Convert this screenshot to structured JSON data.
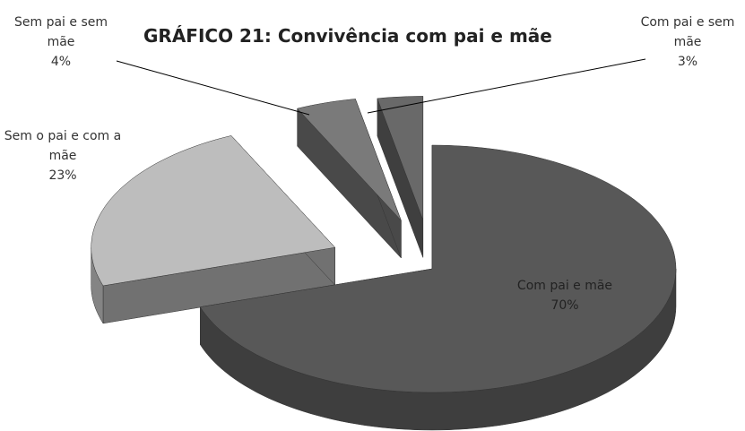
{
  "chart_data": {
    "type": "pie3d",
    "title": "GRÁFICO 21: Convivência com pai e mãe",
    "categories": [
      "Com pai e mãe",
      "Sem o pai e com a mãe",
      "Sem pai e sem mãe",
      "Com pai e sem mãe"
    ],
    "values": [
      70,
      23,
      4,
      3
    ],
    "value_labels": [
      "70%",
      "23%",
      "4%",
      "3%"
    ],
    "colors": [
      "#585858",
      "#bdbdbd",
      "#7a7a7a",
      "#696969"
    ]
  }
}
